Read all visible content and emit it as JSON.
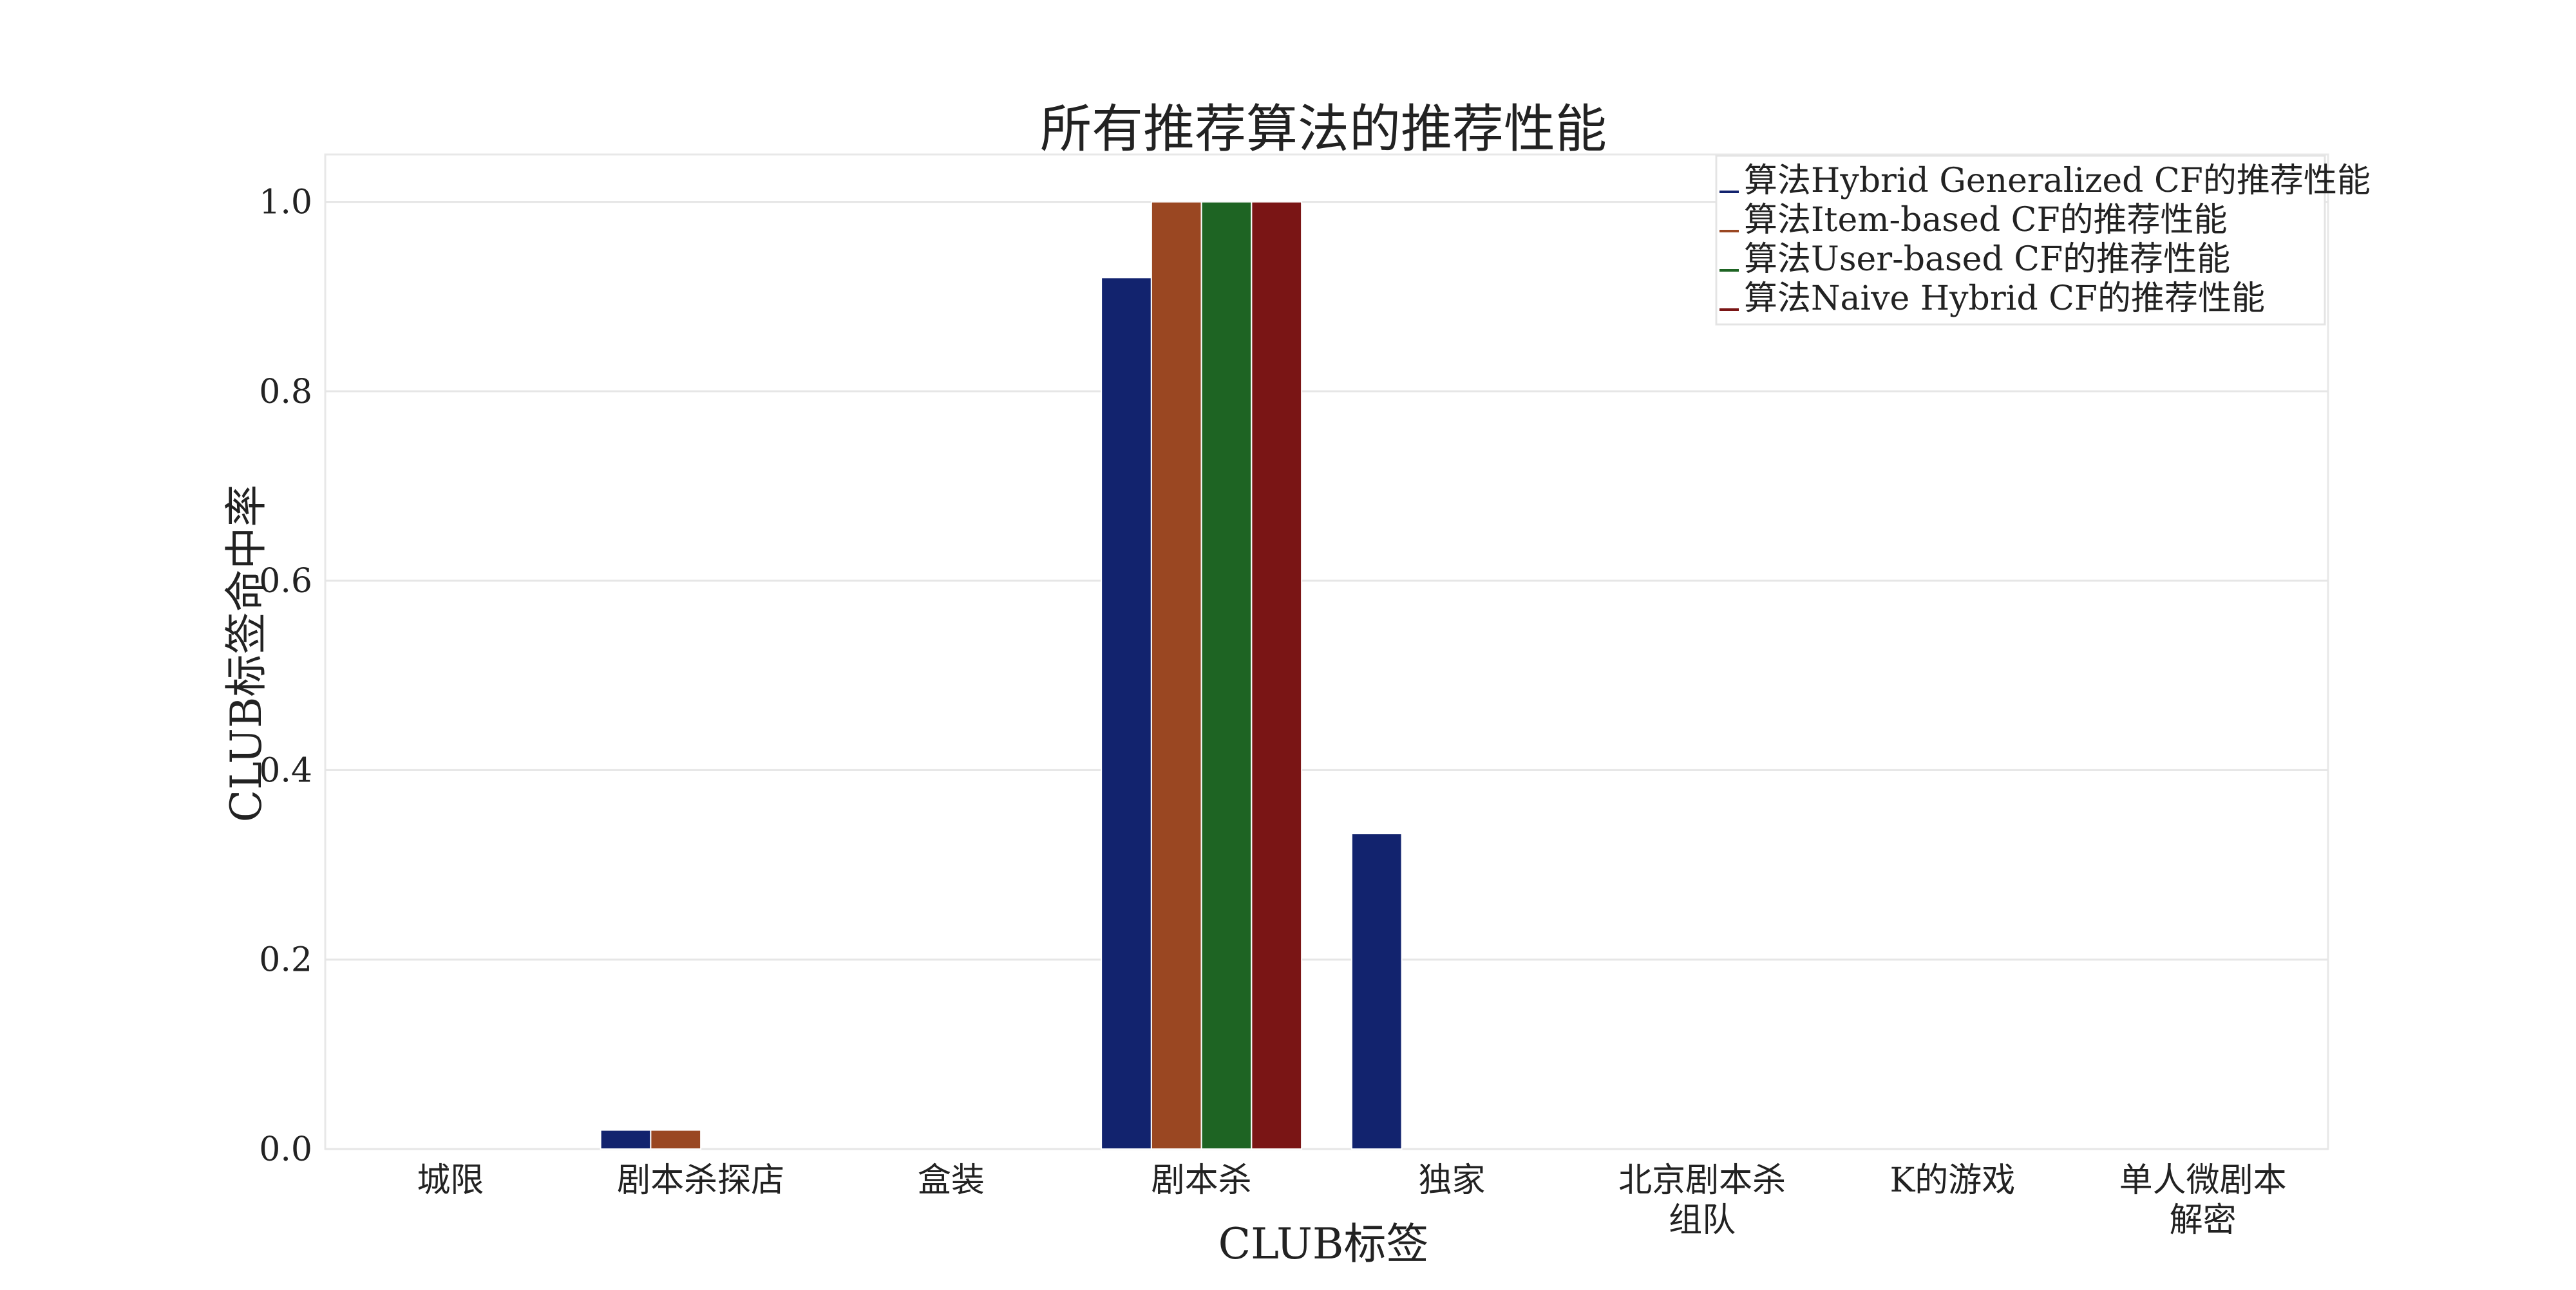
{
  "chart_data": {
    "type": "bar",
    "title": "所有推荐算法的推荐性能",
    "xlabel": "CLUB标签",
    "ylabel": "CLUB标签命中率",
    "categories": [
      "城限",
      "剧本杀探店",
      "盒装",
      "剧本杀",
      "独家",
      "北京剧本杀组队",
      "K的游戏",
      "单人微剧本解密"
    ],
    "category_lines": [
      [
        "城限"
      ],
      [
        "剧本杀探店"
      ],
      [
        "盒装"
      ],
      [
        "剧本杀"
      ],
      [
        "独家"
      ],
      [
        "北京剧本杀",
        "组队"
      ],
      [
        "K的游戏"
      ],
      [
        "单人微剧本",
        "解密"
      ]
    ],
    "series": [
      {
        "name": "算法Hybrid Generalized CF的推荐性能",
        "color": "#12236e",
        "values": [
          0,
          0.02,
          0,
          0.92,
          0.333,
          0,
          0,
          0
        ]
      },
      {
        "name": "算法Item-based CF的推荐性能",
        "color": "#9a4722",
        "values": [
          0,
          0.02,
          0,
          1.0,
          0,
          0,
          0,
          0
        ]
      },
      {
        "name": "算法User-based CF的推荐性能",
        "color": "#1e6423",
        "values": [
          0,
          0,
          0,
          1.0,
          0,
          0,
          0,
          0
        ]
      },
      {
        "name": "算法Naive Hybrid CF的推荐性能",
        "color": "#7a1515",
        "values": [
          0,
          0,
          0,
          1.0,
          0,
          0,
          0,
          0
        ]
      }
    ],
    "ylim": [
      0,
      1.05
    ],
    "yticks": [
      0.0,
      0.2,
      0.4,
      0.6,
      0.8,
      1.0
    ],
    "ytick_labels": [
      "0.0",
      "0.2",
      "0.4",
      "0.6",
      "0.8",
      "1.0"
    ],
    "grid": true,
    "legend_position": "top-right"
  }
}
